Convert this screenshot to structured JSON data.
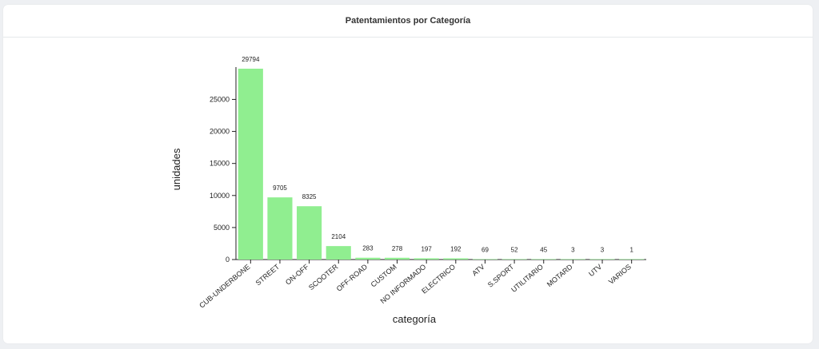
{
  "header": {
    "title": "Patentamientos por Categoría"
  },
  "chart_data": {
    "type": "bar",
    "title": "Patentamientos por Categoría",
    "xlabel": "categoría",
    "ylabel": "unidades",
    "categories": [
      "CUB-UNDERBONE",
      "STREET",
      "ON-OFF",
      "SCOOTER",
      "OFF-ROAD",
      "CUSTOM",
      "NO INFORMADO",
      "ELECTRICO",
      "ATV",
      "S.SPORT",
      "UTILITARIO",
      "MOTARD",
      "UTV",
      "VARIOS"
    ],
    "values": [
      29794,
      9705,
      8325,
      2104,
      283,
      278,
      197,
      192,
      69,
      52,
      45,
      3,
      3,
      1
    ],
    "yticks": [
      0,
      5000,
      10000,
      15000,
      20000,
      25000
    ],
    "ylim": [
      0,
      29794
    ],
    "bar_color": "#90ee90",
    "grid": false,
    "legend": "none"
  }
}
